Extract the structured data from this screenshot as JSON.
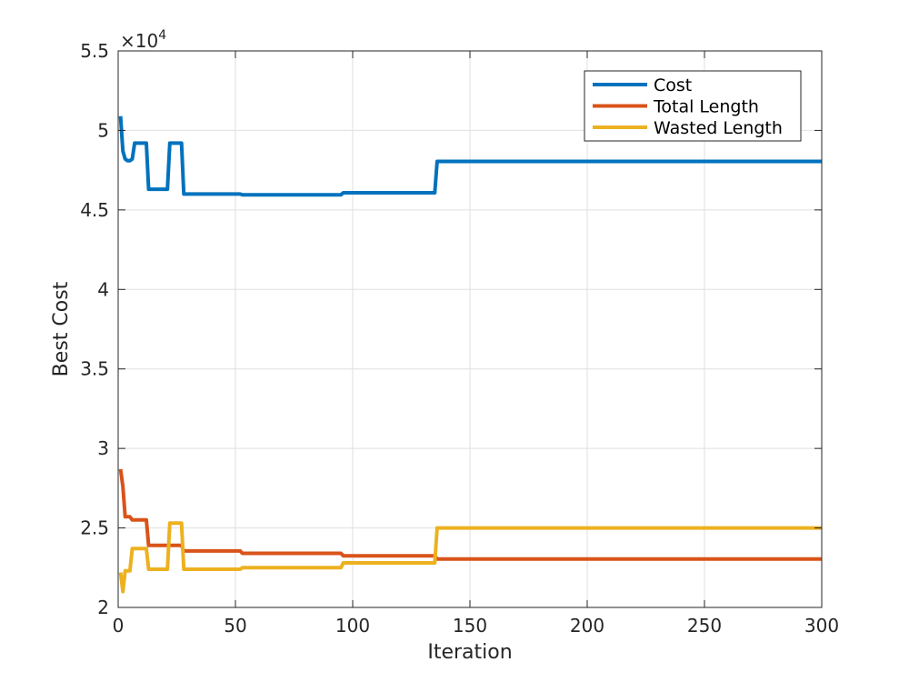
{
  "chart_data": {
    "type": "line",
    "title": "",
    "xlabel": "Iteration",
    "ylabel": "Best Cost",
    "xlim": [
      0,
      300
    ],
    "ylim": [
      20000,
      55000
    ],
    "xticks": [
      0,
      50,
      100,
      150,
      200,
      250,
      300
    ],
    "yticks": [
      20000,
      25000,
      30000,
      35000,
      40000,
      45000,
      50000,
      55000
    ],
    "ytick_labels": [
      "2",
      "2.5",
      "3",
      "3.5",
      "4",
      "4.5",
      "5",
      "5.5"
    ],
    "y_multiplier": {
      "base": "×10",
      "exponent": "4"
    },
    "grid": true,
    "legend_position": "top-right",
    "series": [
      {
        "name": "Cost",
        "color": "#0072BD",
        "points": [
          [
            1,
            50900
          ],
          [
            2,
            48700
          ],
          [
            3,
            48200
          ],
          [
            4,
            48100
          ],
          [
            5,
            48100
          ],
          [
            6,
            48200
          ],
          [
            7,
            49200
          ],
          [
            12,
            49200
          ],
          [
            13,
            46300
          ],
          [
            21,
            46300
          ],
          [
            22,
            49200
          ],
          [
            27,
            49200
          ],
          [
            28,
            46000
          ],
          [
            52,
            46000
          ],
          [
            53,
            45950
          ],
          [
            95,
            45950
          ],
          [
            96,
            46080
          ],
          [
            135,
            46080
          ],
          [
            136,
            48050
          ],
          [
            300,
            48050
          ]
        ]
      },
      {
        "name": "Total Length",
        "color": "#D95319",
        "points": [
          [
            1,
            28700
          ],
          [
            2,
            27600
          ],
          [
            3,
            25700
          ],
          [
            5,
            25700
          ],
          [
            6,
            25500
          ],
          [
            12,
            25500
          ],
          [
            13,
            23900
          ],
          [
            27,
            23900
          ],
          [
            28,
            23550
          ],
          [
            52,
            23550
          ],
          [
            53,
            23400
          ],
          [
            95,
            23400
          ],
          [
            96,
            23250
          ],
          [
            135,
            23250
          ],
          [
            136,
            23050
          ],
          [
            300,
            23050
          ]
        ]
      },
      {
        "name": "Wasted Length",
        "color": "#EDB120",
        "points": [
          [
            1,
            22200
          ],
          [
            2,
            21000
          ],
          [
            3,
            22300
          ],
          [
            5,
            22300
          ],
          [
            6,
            23700
          ],
          [
            12,
            23700
          ],
          [
            13,
            22400
          ],
          [
            21,
            22400
          ],
          [
            22,
            25300
          ],
          [
            27,
            25300
          ],
          [
            28,
            22400
          ],
          [
            52,
            22400
          ],
          [
            53,
            22500
          ],
          [
            95,
            22500
          ],
          [
            96,
            22800
          ],
          [
            135,
            22800
          ],
          [
            136,
            25000
          ],
          [
            300,
            25000
          ]
        ]
      }
    ]
  }
}
